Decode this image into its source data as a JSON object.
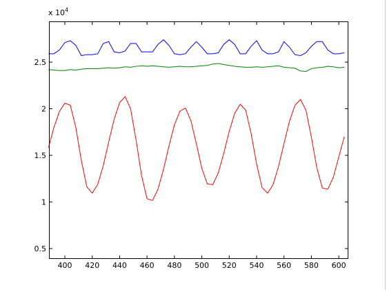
{
  "chart_data": {
    "type": "line",
    "x": [
      388,
      392,
      396,
      400,
      404,
      408,
      412,
      416,
      420,
      424,
      428,
      432,
      436,
      440,
      444,
      448,
      452,
      456,
      460,
      464,
      468,
      472,
      476,
      480,
      484,
      488,
      492,
      496,
      500,
      504,
      508,
      512,
      516,
      520,
      524,
      528,
      532,
      536,
      540,
      544,
      548,
      552,
      556,
      560,
      564,
      568,
      572,
      576,
      580,
      584,
      588,
      592,
      596,
      600,
      604
    ],
    "series": [
      {
        "color": "#0000ff",
        "values": [
          25900,
          25900,
          26300,
          27100,
          27300,
          26800,
          25700,
          25800,
          25800,
          25900,
          27000,
          27200,
          26100,
          26000,
          26200,
          27000,
          27000,
          26100,
          26100,
          26100,
          26900,
          27400,
          26800,
          25900,
          25800,
          25900,
          26600,
          27200,
          26600,
          25900,
          25900,
          26000,
          26900,
          27400,
          26900,
          25900,
          25900,
          26700,
          27300,
          26300,
          25900,
          25900,
          26100,
          27200,
          26600,
          25800,
          25700,
          26000,
          26700,
          27200,
          27200,
          26300,
          25900,
          25900,
          26000
        ]
      },
      {
        "color": "#008000",
        "values": [
          24200,
          24150,
          24100,
          24100,
          24200,
          24150,
          24250,
          24300,
          24300,
          24300,
          24350,
          24400,
          24350,
          24400,
          24500,
          24450,
          24550,
          24600,
          24550,
          24600,
          24550,
          24500,
          24450,
          24500,
          24550,
          24500,
          24500,
          24550,
          24600,
          24650,
          24800,
          24850,
          24750,
          24650,
          24550,
          24500,
          24450,
          24450,
          24500,
          24450,
          24500,
          24550,
          24600,
          24450,
          24400,
          24350,
          24050,
          24000,
          24300,
          24400,
          24450,
          24550,
          24500,
          24400,
          24450
        ]
      },
      {
        "color": "#ff0000",
        "values": [
          15800,
          18000,
          19700,
          20600,
          20370,
          17990,
          14480,
          11630,
          10940,
          11890,
          13880,
          16430,
          18890,
          20660,
          21300,
          19980,
          16630,
          12830,
          10340,
          10160,
          11370,
          13490,
          15990,
          18270,
          19740,
          20080,
          18740,
          16250,
          13610,
          11930,
          11860,
          13110,
          15200,
          17570,
          19510,
          20480,
          19860,
          17340,
          14060,
          11540,
          10940,
          11860,
          13800,
          16270,
          18660,
          20370,
          21000,
          19850,
          16950,
          13650,
          11490,
          11370,
          12640,
          14830,
          17000
        ]
      }
    ],
    "xlim": [
      388.4,
      606.5
    ],
    "xticks": [
      400,
      420,
      440,
      460,
      480,
      500,
      520,
      540,
      560,
      580,
      600
    ],
    "ylim": [
      3960,
      29370
    ],
    "yticks": [
      {
        "value": 5000,
        "label": "0.5"
      },
      {
        "value": 10000,
        "label": "1"
      },
      {
        "value": 15000,
        "label": "1.5"
      },
      {
        "value": 20000,
        "label": "2"
      },
      {
        "value": 25000,
        "label": "2.5"
      }
    ],
    "y_scale_label": {
      "base": "x 10",
      "exponent": "4"
    }
  }
}
